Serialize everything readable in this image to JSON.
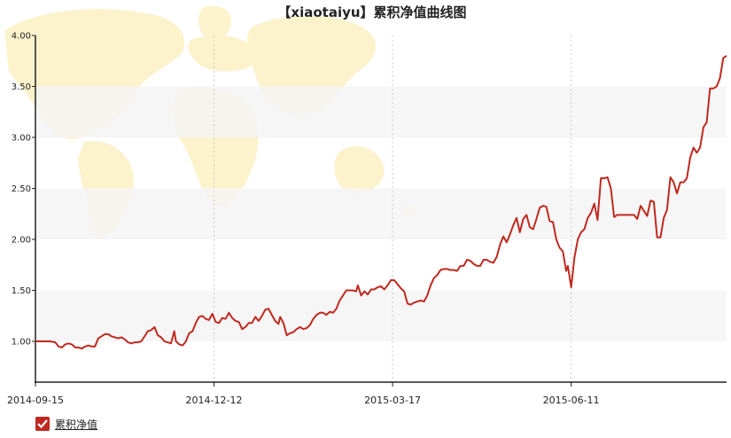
{
  "chart_data": {
    "type": "line",
    "title": "【xiaotaiyu】累积净值曲线图",
    "xlabel": "",
    "ylabel": "",
    "ylim": [
      0.6,
      4.0
    ],
    "yticks": [
      "1.00",
      "1.50",
      "2.00",
      "2.50",
      "3.00",
      "3.50",
      "4.00"
    ],
    "xticks": [
      "2014-09-15",
      "2014-12-12",
      "2015-03-17",
      "2015-06-11"
    ],
    "grid": "horizontal bands, vertical dotted lines",
    "legend_position": "bottom-left",
    "series": [
      {
        "name": "累积净值",
        "color": "#c0291f",
        "points": [
          [
            0,
            1.0
          ],
          [
            3,
            1.0
          ],
          [
            6,
            1.0
          ],
          [
            9,
            1.0
          ],
          [
            12,
            0.99
          ],
          [
            14,
            0.95
          ],
          [
            16,
            0.94
          ],
          [
            18,
            0.97
          ],
          [
            20,
            0.98
          ],
          [
            22,
            0.97
          ],
          [
            24,
            0.94
          ],
          [
            26,
            0.94
          ],
          [
            28,
            0.93
          ],
          [
            30,
            0.95
          ],
          [
            32,
            0.96
          ],
          [
            34,
            0.95
          ],
          [
            36,
            0.95
          ],
          [
            38,
            1.03
          ],
          [
            40,
            1.05
          ],
          [
            42,
            1.07
          ],
          [
            44,
            1.07
          ],
          [
            46,
            1.05
          ],
          [
            48,
            1.04
          ],
          [
            50,
            1.03
          ],
          [
            52,
            1.04
          ],
          [
            54,
            1.02
          ],
          [
            56,
            0.99
          ],
          [
            58,
            0.98
          ],
          [
            60,
            0.99
          ],
          [
            62,
            0.99
          ],
          [
            64,
            1.0
          ],
          [
            66,
            1.05
          ],
          [
            68,
            1.1
          ],
          [
            70,
            1.11
          ],
          [
            72,
            1.14
          ],
          [
            74,
            1.06
          ],
          [
            76,
            1.04
          ],
          [
            78,
            1.0
          ],
          [
            80,
            0.99
          ],
          [
            82,
            0.98
          ],
          [
            84,
            1.1
          ],
          [
            85,
            1.0
          ],
          [
            87,
            0.97
          ],
          [
            89,
            0.96
          ],
          [
            91,
            1.0
          ],
          [
            93,
            1.08
          ],
          [
            95,
            1.1
          ],
          [
            97,
            1.18
          ],
          [
            99,
            1.24
          ],
          [
            101,
            1.25
          ],
          [
            103,
            1.22
          ],
          [
            105,
            1.21
          ],
          [
            107,
            1.27
          ],
          [
            109,
            1.19
          ],
          [
            111,
            1.18
          ],
          [
            113,
            1.23
          ],
          [
            115,
            1.22
          ],
          [
            117,
            1.28
          ],
          [
            119,
            1.23
          ],
          [
            121,
            1.2
          ],
          [
            123,
            1.19
          ],
          [
            125,
            1.12
          ],
          [
            127,
            1.14
          ],
          [
            129,
            1.18
          ],
          [
            131,
            1.18
          ],
          [
            133,
            1.24
          ],
          [
            135,
            1.2
          ],
          [
            137,
            1.25
          ],
          [
            139,
            1.31
          ],
          [
            141,
            1.32
          ],
          [
            143,
            1.26
          ],
          [
            145,
            1.2
          ],
          [
            147,
            1.17
          ],
          [
            148,
            1.24
          ],
          [
            150,
            1.18
          ],
          [
            152,
            1.06
          ],
          [
            154,
            1.08
          ],
          [
            156,
            1.09
          ],
          [
            158,
            1.12
          ],
          [
            160,
            1.14
          ],
          [
            162,
            1.12
          ],
          [
            164,
            1.13
          ],
          [
            166,
            1.16
          ],
          [
            168,
            1.22
          ],
          [
            170,
            1.26
          ],
          [
            172,
            1.28
          ],
          [
            174,
            1.28
          ],
          [
            176,
            1.26
          ],
          [
            178,
            1.29
          ],
          [
            180,
            1.28
          ],
          [
            182,
            1.32
          ],
          [
            184,
            1.4
          ],
          [
            186,
            1.45
          ],
          [
            188,
            1.5
          ],
          [
            190,
            1.5
          ],
          [
            192,
            1.5
          ],
          [
            194,
            1.49
          ],
          [
            195,
            1.55
          ],
          [
            197,
            1.45
          ],
          [
            199,
            1.49
          ],
          [
            201,
            1.46
          ],
          [
            203,
            1.51
          ],
          [
            205,
            1.51
          ],
          [
            207,
            1.53
          ],
          [
            209,
            1.54
          ],
          [
            211,
            1.51
          ],
          [
            213,
            1.55
          ],
          [
            215,
            1.6
          ],
          [
            217,
            1.6
          ],
          [
            219,
            1.56
          ],
          [
            221,
            1.52
          ],
          [
            223,
            1.49
          ],
          [
            225,
            1.37
          ],
          [
            227,
            1.36
          ],
          [
            229,
            1.38
          ],
          [
            231,
            1.39
          ],
          [
            233,
            1.4
          ],
          [
            235,
            1.39
          ],
          [
            237,
            1.45
          ],
          [
            239,
            1.55
          ],
          [
            241,
            1.62
          ],
          [
            243,
            1.65
          ],
          [
            245,
            1.7
          ],
          [
            247,
            1.71
          ],
          [
            249,
            1.71
          ],
          [
            251,
            1.7
          ],
          [
            253,
            1.7
          ],
          [
            255,
            1.69
          ],
          [
            257,
            1.74
          ],
          [
            259,
            1.74
          ],
          [
            261,
            1.8
          ],
          [
            263,
            1.79
          ],
          [
            265,
            1.76
          ],
          [
            267,
            1.74
          ],
          [
            269,
            1.74
          ],
          [
            271,
            1.8
          ],
          [
            273,
            1.8
          ],
          [
            275,
            1.78
          ],
          [
            277,
            1.77
          ],
          [
            279,
            1.83
          ],
          [
            281,
            1.95
          ],
          [
            283,
            2.03
          ],
          [
            285,
            1.97
          ],
          [
            287,
            2.05
          ],
          [
            289,
            2.14
          ],
          [
            291,
            2.21
          ],
          [
            293,
            2.07
          ],
          [
            295,
            2.2
          ],
          [
            297,
            2.24
          ],
          [
            299,
            2.12
          ],
          [
            301,
            2.1
          ],
          [
            303,
            2.2
          ],
          [
            305,
            2.31
          ],
          [
            307,
            2.33
          ],
          [
            309,
            2.32
          ],
          [
            311,
            2.18
          ],
          [
            313,
            2.17
          ],
          [
            315,
            2.0
          ],
          [
            317,
            1.92
          ],
          [
            319,
            1.88
          ],
          [
            321,
            1.69
          ],
          [
            322,
            1.74
          ],
          [
            324,
            1.53
          ],
          [
            326,
            1.82
          ],
          [
            328,
            2.0
          ],
          [
            330,
            2.07
          ],
          [
            332,
            2.1
          ],
          [
            334,
            2.21
          ],
          [
            336,
            2.26
          ],
          [
            338,
            2.35
          ],
          [
            340,
            2.19
          ],
          [
            342,
            2.6
          ],
          [
            344,
            2.6
          ],
          [
            346,
            2.61
          ],
          [
            348,
            2.5
          ],
          [
            350,
            2.22
          ],
          [
            352,
            2.24
          ],
          [
            354,
            2.24
          ],
          [
            356,
            2.24
          ],
          [
            358,
            2.24
          ],
          [
            360,
            2.24
          ],
          [
            362,
            2.24
          ],
          [
            364,
            2.2
          ],
          [
            366,
            2.33
          ],
          [
            368,
            2.28
          ],
          [
            370,
            2.23
          ],
          [
            372,
            2.38
          ],
          [
            374,
            2.37
          ],
          [
            376,
            2.02
          ],
          [
            378,
            2.02
          ],
          [
            380,
            2.21
          ],
          [
            382,
            2.29
          ],
          [
            384,
            2.61
          ],
          [
            386,
            2.56
          ],
          [
            388,
            2.45
          ],
          [
            390,
            2.56
          ],
          [
            392,
            2.56
          ],
          [
            394,
            2.6
          ],
          [
            396,
            2.8
          ],
          [
            398,
            2.9
          ],
          [
            400,
            2.85
          ],
          [
            402,
            2.9
          ],
          [
            404,
            3.1
          ],
          [
            406,
            3.15
          ],
          [
            408,
            3.48
          ],
          [
            410,
            3.48
          ],
          [
            412,
            3.5
          ],
          [
            414,
            3.58
          ],
          [
            416,
            3.78
          ],
          [
            418,
            3.8
          ]
        ]
      }
    ]
  }
}
